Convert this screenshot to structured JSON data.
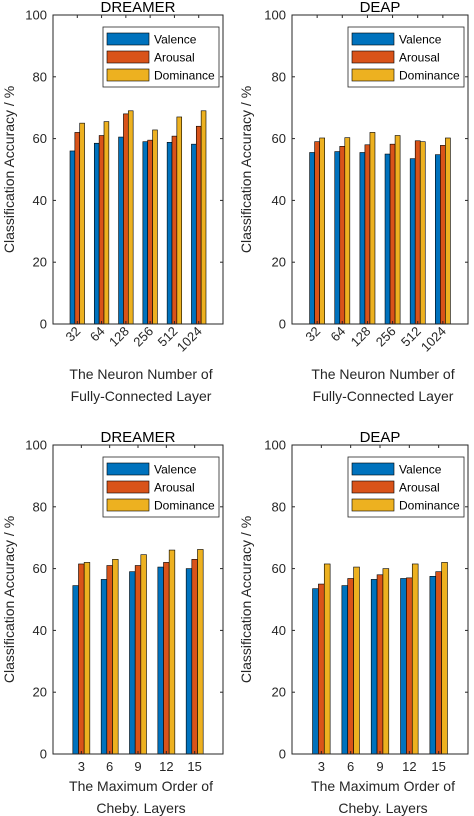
{
  "legend": [
    "Valence",
    "Arousal",
    "Dominance"
  ],
  "colors": {
    "valence": "#0072BD",
    "arousal": "#D95319",
    "dominance": "#EDB120"
  },
  "chart_data": [
    {
      "type": "bar",
      "title": "DREAMER",
      "ylabel": "Classification Accuracy / %",
      "xlabel_lines": [
        "The Neuron Number of",
        "Fully-Connected Layer"
      ],
      "categories": [
        "32",
        "64",
        "128",
        "256",
        "512",
        "1024"
      ],
      "rotate_ticks": true,
      "ylim": [
        0,
        100
      ],
      "yticks": [
        "0",
        "20",
        "40",
        "60",
        "80",
        "100"
      ],
      "legend_position": "top-right",
      "series": [
        {
          "name": "Valence",
          "values": [
            56.0,
            58.5,
            60.5,
            59.0,
            58.8,
            58.2
          ]
        },
        {
          "name": "Arousal",
          "values": [
            62.0,
            61.0,
            68.0,
            59.5,
            60.8,
            64.0
          ]
        },
        {
          "name": "Dominance",
          "values": [
            65.0,
            65.5,
            69.0,
            62.8,
            67.0,
            69.0
          ]
        }
      ]
    },
    {
      "type": "bar",
      "title": "DEAP",
      "ylabel": "Classification Accuracy / %",
      "xlabel_lines": [
        "The Neuron Number of",
        "Fully-Connected Layer"
      ],
      "categories": [
        "32",
        "64",
        "128",
        "256",
        "512",
        "1024"
      ],
      "rotate_ticks": true,
      "ylim": [
        0,
        100
      ],
      "yticks": [
        "0",
        "20",
        "40",
        "60",
        "80",
        "100"
      ],
      "legend_position": "top-right",
      "series": [
        {
          "name": "Valence",
          "values": [
            55.5,
            55.8,
            55.5,
            55.0,
            53.5,
            54.8
          ]
        },
        {
          "name": "Arousal",
          "values": [
            59.0,
            57.5,
            58.0,
            58.2,
            59.3,
            57.8
          ]
        },
        {
          "name": "Dominance",
          "values": [
            60.2,
            60.3,
            62.0,
            61.0,
            59.0,
            60.2
          ]
        }
      ]
    },
    {
      "type": "bar",
      "title": "DREAMER",
      "ylabel": "Classification Accuracy / %",
      "xlabel_lines": [
        "The Maximum Order of",
        "Cheby. Layers"
      ],
      "categories": [
        "3",
        "6",
        "9",
        "12",
        "15"
      ],
      "rotate_ticks": false,
      "ylim": [
        0,
        100
      ],
      "yticks": [
        "0",
        "20",
        "40",
        "60",
        "80",
        "100"
      ],
      "legend_position": "top-right",
      "series": [
        {
          "name": "Valence",
          "values": [
            54.5,
            56.5,
            59.0,
            60.5,
            60.0
          ]
        },
        {
          "name": "Arousal",
          "values": [
            61.5,
            61.0,
            61.0,
            62.0,
            63.0
          ]
        },
        {
          "name": "Dominance",
          "values": [
            62.0,
            63.0,
            64.5,
            66.0,
            66.2
          ]
        }
      ]
    },
    {
      "type": "bar",
      "title": "DEAP",
      "ylabel": "Classification Accuracy / %",
      "xlabel_lines": [
        "The Maximum Order of",
        "Cheby. Layers"
      ],
      "categories": [
        "3",
        "6",
        "9",
        "12",
        "15"
      ],
      "rotate_ticks": false,
      "ylim": [
        0,
        100
      ],
      "yticks": [
        "0",
        "20",
        "40",
        "60",
        "80",
        "100"
      ],
      "legend_position": "top-right",
      "series": [
        {
          "name": "Valence",
          "values": [
            53.5,
            54.5,
            56.5,
            56.8,
            57.5
          ]
        },
        {
          "name": "Arousal",
          "values": [
            55.0,
            56.8,
            58.0,
            57.0,
            59.0
          ]
        },
        {
          "name": "Dominance",
          "values": [
            61.5,
            60.5,
            60.0,
            61.5,
            62.0
          ]
        }
      ]
    }
  ]
}
